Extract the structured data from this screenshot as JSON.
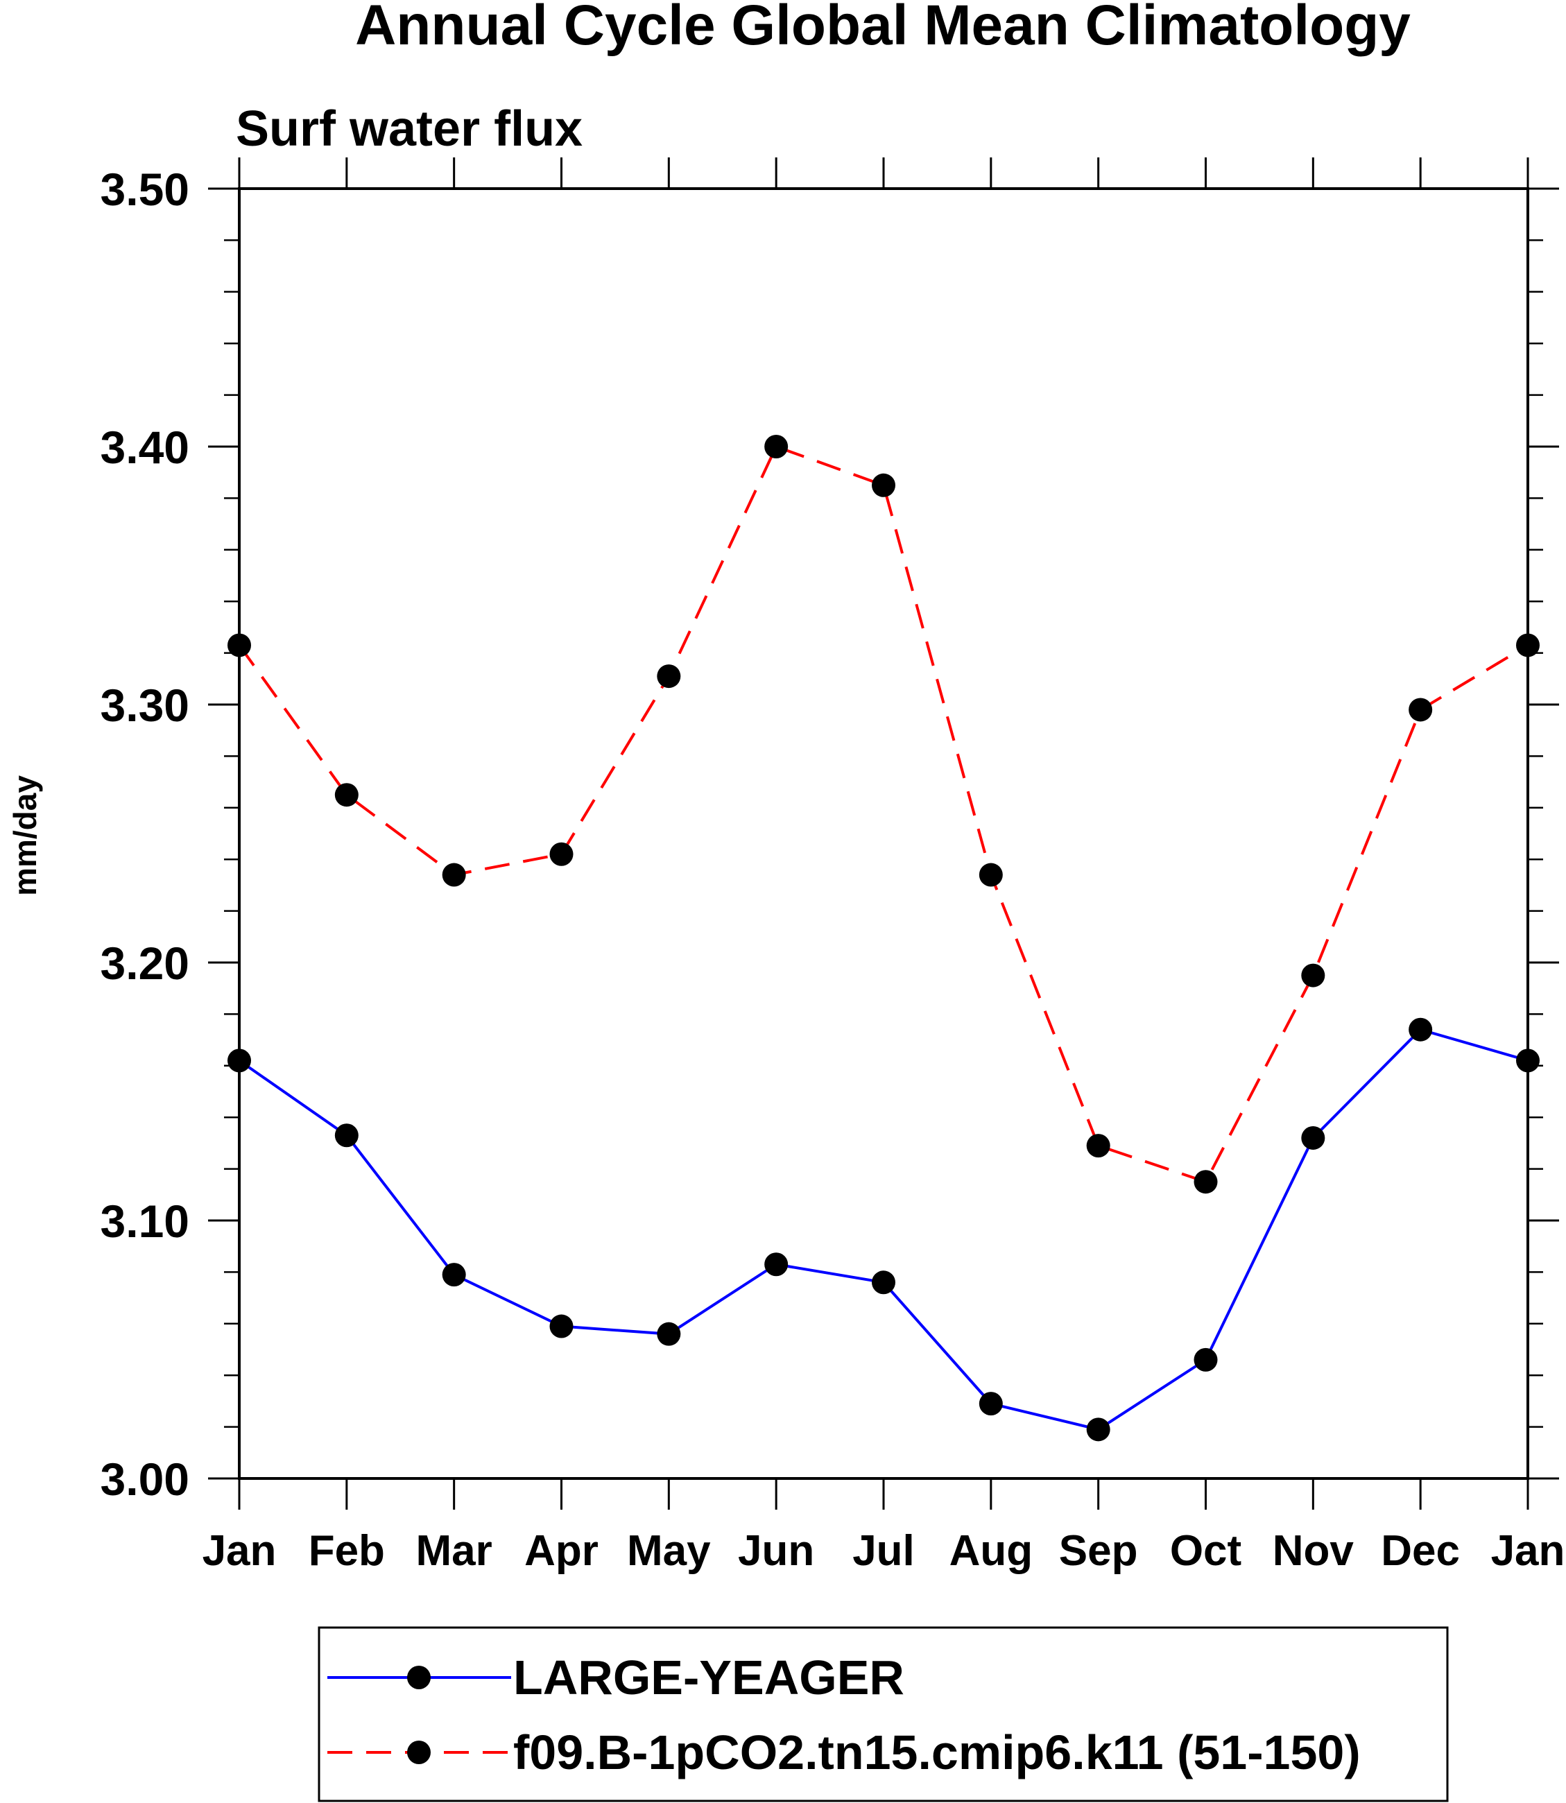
{
  "chart_data": {
    "type": "line",
    "title": "Annual Cycle Global Mean Climatology",
    "subtitle": "Surf water flux",
    "xlabel": "",
    "ylabel": "mm/day",
    "categories": [
      "Jan",
      "Feb",
      "Mar",
      "Apr",
      "May",
      "Jun",
      "Jul",
      "Aug",
      "Sep",
      "Oct",
      "Nov",
      "Dec",
      "Jan"
    ],
    "ylim": [
      3.0,
      3.5
    ],
    "y_ticks": [
      "3.00",
      "3.10",
      "3.20",
      "3.30",
      "3.40",
      "3.50"
    ],
    "grid": false,
    "legend_position": "bottom",
    "series": [
      {
        "name": "LARGE-YEAGER",
        "color": "#0000ff",
        "line_style": "solid",
        "marker": "filled-circle",
        "values": [
          3.162,
          3.133,
          3.079,
          3.059,
          3.056,
          3.083,
          3.076,
          3.029,
          3.019,
          3.046,
          3.132,
          3.174,
          3.162
        ]
      },
      {
        "name": "f09.B-1pCO2.tn15.cmip6.k11 (51-150)",
        "color": "#ff0000",
        "line_style": "dashed",
        "marker": "filled-circle",
        "values": [
          3.323,
          3.265,
          3.234,
          3.242,
          3.311,
          3.4,
          3.385,
          3.234,
          3.129,
          3.115,
          3.195,
          3.298,
          3.323
        ]
      }
    ]
  }
}
